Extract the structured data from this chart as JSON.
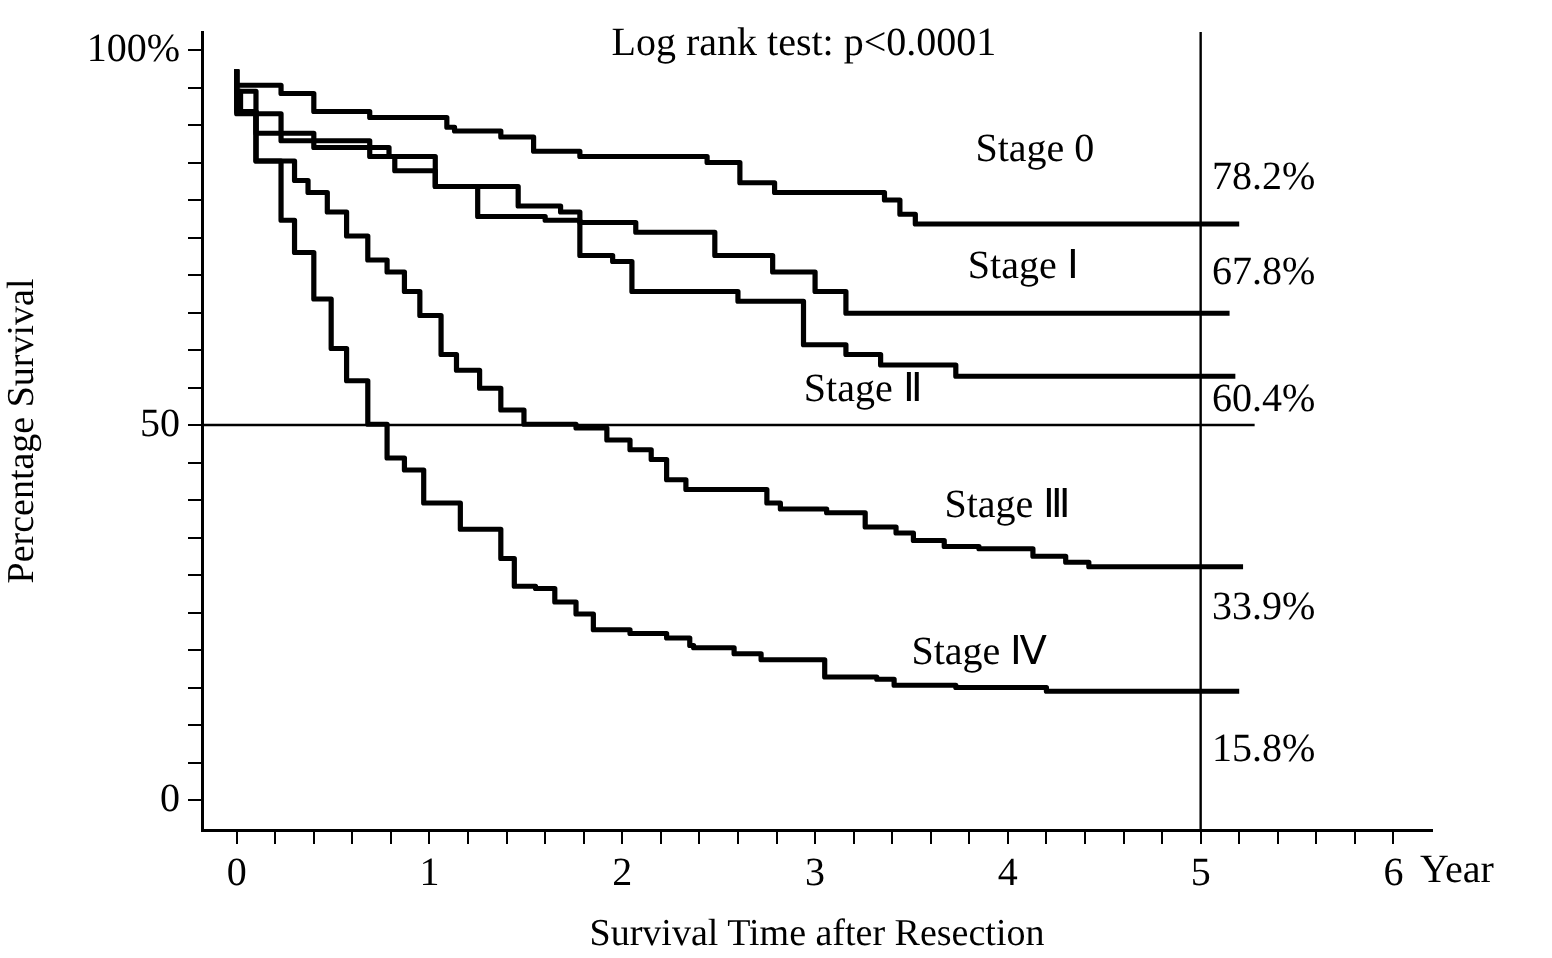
{
  "chart_data": {
    "type": "step",
    "xlabel": "Survival Time after Resection",
    "ylabel": "Percentage Survival",
    "annotations": [
      "Log rank test: p<0.0001",
      "78.2%",
      "67.8%",
      "60.4%",
      "33.9%",
      "15.8%",
      "Year"
    ],
    "xlim": [
      -0.18,
      6.2
    ],
    "ylim": [
      -4,
      102.4
    ],
    "xticks": [
      0,
      {
        "value": 0.2,
        "label": null
      },
      {
        "value": 0.4,
        "label": null
      },
      {
        "value": 0.6,
        "label": null
      },
      {
        "value": 0.8,
        "label": null
      },
      1,
      {
        "value": 1.2,
        "label": null
      },
      {
        "value": 1.4,
        "label": null
      },
      {
        "value": 1.6,
        "label": null
      },
      {
        "value": 1.8,
        "label": null
      },
      2,
      {
        "value": 2.2,
        "label": null
      },
      {
        "value": 2.4,
        "label": null
      },
      {
        "value": 2.6,
        "label": null
      },
      {
        "value": 2.8,
        "label": null
      },
      3,
      {
        "value": 3.2,
        "label": null
      },
      {
        "value": 3.4,
        "label": null
      },
      {
        "value": 3.6,
        "label": null
      },
      {
        "value": 3.8,
        "label": null
      },
      4,
      {
        "value": 4.2,
        "label": null
      },
      {
        "value": 4.4,
        "label": null
      },
      {
        "value": 4.6,
        "label": null
      },
      {
        "value": 4.8,
        "label": null
      },
      5,
      {
        "value": 5.2,
        "label": null
      },
      {
        "value": 5.4,
        "label": null
      },
      {
        "value": 5.6,
        "label": null
      },
      {
        "value": 5.8,
        "label": null
      },
      6
    ],
    "yticks": [
      0,
      {
        "value": 5,
        "label": null
      },
      {
        "value": 10,
        "label": null
      },
      {
        "value": 15,
        "label": null
      },
      {
        "value": 20,
        "label": null
      },
      {
        "value": 25,
        "label": null
      },
      {
        "value": 30,
        "label": null
      },
      {
        "value": 35,
        "label": null
      },
      {
        "value": 40,
        "label": null
      },
      {
        "value": 45,
        "label": null
      },
      50,
      {
        "value": 55,
        "label": null
      },
      {
        "value": 60,
        "label": null
      },
      {
        "value": 65,
        "label": null
      },
      {
        "value": 70,
        "label": null
      },
      {
        "value": 75,
        "label": null
      },
      {
        "value": 80,
        "label": null
      },
      {
        "value": 85,
        "label": null
      },
      {
        "value": 90,
        "label": null
      },
      {
        "value": 95,
        "label": null
      },
      {
        "value": 100,
        "label": "100%"
      }
    ],
    "grid": false,
    "legend": false,
    "marker": "none",
    "line_style": "solid",
    "ref_lines": [
      {
        "axis": "y",
        "value": 50,
        "color": "#000000"
      },
      {
        "axis": "x",
        "value": 5,
        "color": "#000000"
      }
    ],
    "series": [
      {
        "name": "Stage 0",
        "color": "#000000",
        "x": [
          0,
          0.23,
          0.4,
          0.69,
          1.09,
          1.13,
          1.37,
          1.54,
          1.78,
          2.44,
          2.61,
          2.79,
          3.36,
          3.44,
          3.52,
          4.72,
          5.2
        ],
        "values": [
          97.4,
          95.3,
          94.2,
          91.8,
          91,
          89.7,
          89.2,
          88.4,
          86.5,
          85.8,
          85,
          82.3,
          81,
          80,
          78.1,
          76.8,
          76.8
        ]
      },
      {
        "name": "Stage Ⅰ",
        "color": "#000000",
        "x": [
          0,
          0.1,
          0.23,
          0.69,
          0.82,
          1.03,
          1.46,
          1.68,
          1.78,
          2.07,
          2.48,
          2.78,
          3.0,
          3.16,
          3.52,
          5.15
        ],
        "values": [
          97.4,
          94.5,
          91.5,
          87.9,
          85.8,
          83.9,
          81.8,
          79.2,
          78.4,
          77,
          75.7,
          72.6,
          70.4,
          67.8,
          64.9,
          64.9
        ]
      },
      {
        "name": "Stage Ⅱ",
        "color": "#000000",
        "x": [
          0,
          0.02,
          0.1,
          0.4,
          0.79,
          1.03,
          1.25,
          1.6,
          1.78,
          1.95,
          2.05,
          2.6,
          2.94,
          3.16,
          3.34,
          3.73,
          3.85,
          5.18
        ],
        "values": [
          97.4,
          94.5,
          91.8,
          88.9,
          87,
          85.8,
          81.8,
          77.8,
          77.3,
          72.6,
          71.8,
          67.8,
          66.5,
          60.7,
          59.4,
          58,
          56.5,
          56.5
        ]
      },
      {
        "name": "Stage Ⅲ",
        "color": "#000000",
        "x": [
          0,
          0.1,
          0.3,
          0.37,
          0.47,
          0.57,
          0.68,
          0.78,
          0.87,
          0.95,
          1.06,
          1.14,
          1.26,
          1.37,
          1.49,
          1.76,
          1.92,
          2.04,
          2.15,
          2.23,
          2.33,
          2.75,
          2.82,
          3.06,
          3.26,
          3.42,
          3.51,
          3.67,
          3.85,
          4.13,
          4.3,
          4.42,
          4.53,
          5.22
        ],
        "values": [
          97.4,
          91.5,
          85.2,
          82.6,
          81,
          78.4,
          75.2,
          72,
          70.4,
          67.8,
          64.6,
          59.4,
          57.3,
          54.9,
          52,
          50.1,
          49.6,
          48,
          46.7,
          45.4,
          42.7,
          41.4,
          39.6,
          38.8,
          38.3,
          36.4,
          35.6,
          34.6,
          33.8,
          33.5,
          32.5,
          31.7,
          31.1,
          31.1
        ]
      },
      {
        "name": "Stage Ⅳ",
        "color": "#000000",
        "x": [
          0,
          0.1,
          0.23,
          0.3,
          0.4,
          0.49,
          0.57,
          0.68,
          0.78,
          0.87,
          0.97,
          1.16,
          1.37,
          1.44,
          1.55,
          1.65,
          1.76,
          1.85,
          2.04,
          2.23,
          2.35,
          2.37,
          2.58,
          2.72,
          3.05,
          3.32,
          3.41,
          3.73,
          4.2,
          4.42,
          5.2
        ],
        "values": [
          97.4,
          91.8,
          85.2,
          77.3,
          73,
          66.8,
          60.2,
          55.9,
          50.1,
          45.6,
          44,
          39.6,
          36.1,
          32.2,
          28.5,
          28.2,
          26.4,
          24.8,
          22.7,
          22.2,
          21.6,
          20.6,
          20.3,
          19.5,
          18.7,
          16.4,
          16.1,
          15.3,
          15,
          14.5,
          14.5
        ]
      }
    ]
  }
}
